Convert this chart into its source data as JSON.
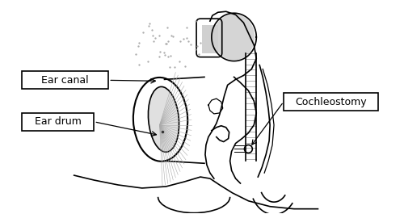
{
  "background_color": "#ffffff",
  "line_color": "#000000",
  "label_ear_canal": "Ear canal",
  "label_ear_drum": "Ear drum",
  "label_cochleostomy": "Cochleostomy",
  "label_fontsize": 9,
  "fig_width": 5.0,
  "fig_height": 2.65,
  "dpi": 100
}
